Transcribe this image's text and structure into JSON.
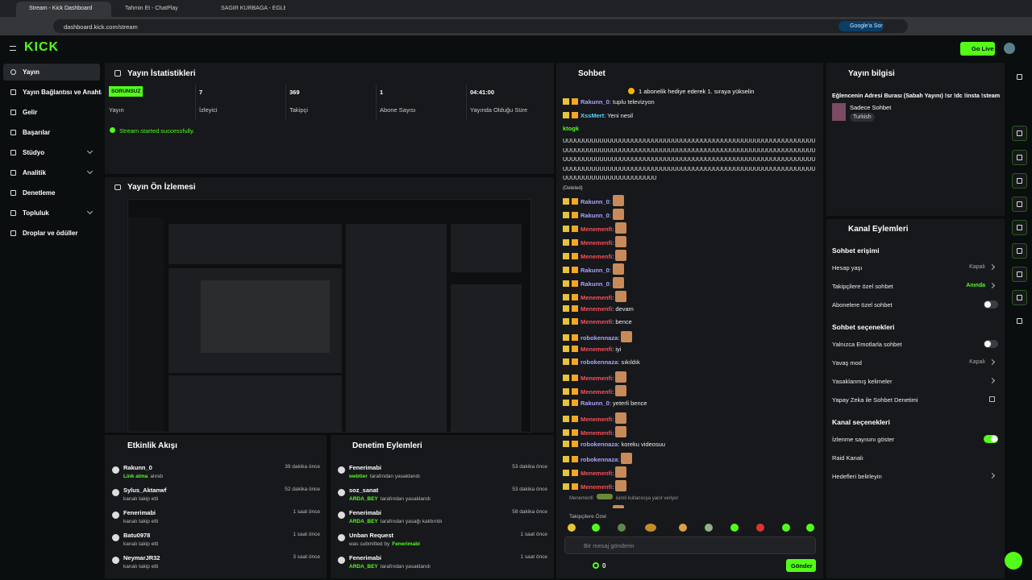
{
  "browser": {
    "tabs": [
      "Stream - Kick Dashboard",
      "Tahmin Et - ChatPlay",
      "SAĞIR KURBAĞA - EĞLENCELİ"
    ],
    "url": "dashboard.kick.com/stream",
    "ask": "Google'a Sor"
  },
  "header": {
    "logo": "KICK",
    "go_live": "Go Live"
  },
  "sidebar": [
    {
      "label": "Yayın",
      "active": true
    },
    {
      "label": "Yayın Bağlantısı ve Anahtarı"
    },
    {
      "label": "Gelir"
    },
    {
      "label": "Başarılar"
    },
    {
      "label": "Stüdyo",
      "expandable": true
    },
    {
      "label": "Analitik",
      "expandable": true
    },
    {
      "label": "Denetleme"
    },
    {
      "label": "Topluluk",
      "expandable": true
    },
    {
      "label": "Droplar ve ödüller"
    }
  ],
  "stats": {
    "title": "Yayın İstatistikleri",
    "items": [
      {
        "value": "SORUNSUZ",
        "label": "Yayın",
        "badge": true
      },
      {
        "value": "7",
        "label": "İzleyici"
      },
      {
        "value": "369",
        "label": "Takipçi"
      },
      {
        "value": "1",
        "label": "Abone Sayısı"
      },
      {
        "value": "04:41:00",
        "label": "Yayında Olduğu Süre"
      }
    ],
    "message": "Stream started successfully."
  },
  "preview": {
    "title": "Yayın Ön İzlemesi"
  },
  "activity": {
    "title": "Etkinlik Akışı",
    "items": [
      {
        "user": "Rakunn_0",
        "highlight": "Link atma",
        "detail": "alındı",
        "time": "39 dakika önce"
      },
      {
        "user": "Sylus_Aktanwf",
        "detail": "kanalı takip etti",
        "time": "52 dakika önce"
      },
      {
        "user": "Fenerimabi",
        "detail": "kanalı takip etti",
        "time": "1 saat önce"
      },
      {
        "user": "Batu0978",
        "detail": "kanalı takip etti",
        "time": "1 saat önce"
      },
      {
        "user": "NeymarJR32",
        "detail": "kanalı takip etti",
        "time": "3 saat önce"
      }
    ]
  },
  "moderation": {
    "title": "Denetim Eylemleri",
    "items": [
      {
        "user": "Fenerimabi",
        "actor": "webtier",
        "detail": "tarafından yasaklandı",
        "time": "53 dakika önce"
      },
      {
        "user": "soz_sanat",
        "actor": "ARDA_BEY",
        "detail": "tarafından yasaklandı",
        "time": "53 dakika önce"
      },
      {
        "user": "Fenerimabi",
        "actor": "ARDA_BEY",
        "detail": "tarafından yasağı kaldırıldı",
        "time": "58 dakika önce"
      },
      {
        "user": "Unban Request",
        "before": "was submitted by",
        "actor": "Fenerimabi",
        "time": "1 saat önce"
      },
      {
        "user": "Fenerimabi",
        "actor": "ARDA_BEY",
        "detail": "tarafından yasaklandı",
        "time": "1 saat önce"
      }
    ]
  },
  "chat": {
    "title": "Sohbet",
    "banner": "1 abonelik hediye ederek 1. sıraya yükselin",
    "messages": [
      {
        "user": "Rakunn_0",
        "color": "#a8a4ff",
        "text": "tuplu televizyon"
      },
      {
        "user": "XssMert",
        "color": "#5fd3ff",
        "text": "Yeni nesil"
      },
      {
        "user": "ktogk",
        "color": "#53fc18",
        "block": "UUUUUUUUUUUUUUUUUUUUUUUUUUUUUUUUUUUUUUUUUUUUUUUUUUUUUUUUUUUUUUUUUUUUUUUUUUUUUUUUUUUUUUUUUUUUUUUUUUUUUUUUUUUUUUUUUUUUUUUUUUUUUUUUUUUUUUUUUUUUUUUUUUUUUUUUUUUUUUUUUUUUUUUUUUUUUUUUUUUUUUUUUUUUUUUUUUUUUUUUUUUUUUUUUUUUUUUUUUUUUUUUUUUUUUUUUUUUUUUUUUUUUUUUUUUUUUUUUUUUUUUUUUUUUUU",
        "status": "(Deleted)"
      },
      {
        "user": "Rakunn_0",
        "color": "#a8a4ff"
      },
      {
        "user": "Rakunn_0",
        "color": "#a8a4ff"
      },
      {
        "user": "Menemenfi",
        "color": "#ff4d57"
      },
      {
        "user": "Menemenfi",
        "color": "#ff4d57"
      },
      {
        "user": "Menemenfi",
        "color": "#ff4d57"
      },
      {
        "user": "Rakunn_0",
        "color": "#a8a4ff"
      },
      {
        "user": "Rakunn_0",
        "color": "#a8a4ff"
      },
      {
        "user": "Menemenfi",
        "color": "#ff4d57"
      },
      {
        "user": "Menemenfi",
        "color": "#ff4d57",
        "text": "devam"
      },
      {
        "user": "Menemenfi",
        "color": "#ff4d57",
        "text": "bence"
      },
      {
        "user": "robokennaza",
        "color": "#a8a4ff"
      },
      {
        "user": "Menemenfi",
        "color": "#ff4d57",
        "text": "iyi"
      },
      {
        "user": "robokennaza",
        "color": "#a8a4ff",
        "text": "sıkıldık"
      },
      {
        "user": "Menemenfi",
        "color": "#ff4d57"
      },
      {
        "user": "Menemenfi",
        "color": "#ff4d57"
      },
      {
        "user": "Rakunn_0",
        "color": "#a8a4ff",
        "text": "yeterli bence"
      },
      {
        "user": "Menemenfi",
        "color": "#ff4d57"
      },
      {
        "user": "Menemenfi",
        "color": "#ff4d57"
      },
      {
        "user": "robokennaza",
        "color": "#a8a4ff",
        "text": "koreku videosuu"
      },
      {
        "user": "robokennaza",
        "color": "#a8a4ff"
      },
      {
        "user": "Menemenfi",
        "color": "#ff4d57"
      },
      {
        "user": "Menemenfi",
        "color": "#ff4d57"
      },
      {
        "reply_to": "Menemenfi",
        "text": "isimli kullanıcıya yanıt veriyor"
      },
      {
        "user": "Rakunn_0",
        "color": "#a8a4ff"
      }
    ],
    "footer_label": "Takipçilere Özel",
    "placeholder": "Bir mesaj gönderin",
    "count": "0",
    "send": "Gönder"
  },
  "stream_info": {
    "title": "Yayın bilgisi",
    "stream_title": "Eğlencenin Adresi Burası (Sabah Yayını) !sr !dc !insta !steam",
    "category": "Sadece Sohbet",
    "tag": "Turkish"
  },
  "channel_actions": {
    "title": "Kanal Eylemleri",
    "sections": [
      {
        "heading": "Sohbet erişimi",
        "rows": [
          {
            "label": "Hesap yaşı",
            "value": "Kapalı",
            "control": "chevron"
          },
          {
            "label": "Takipçilere özel sohbet",
            "value": "Anında",
            "value_color": "#53fc18",
            "control": "chevron"
          },
          {
            "label": "Abonelere özel sohbet",
            "control": "toggle-off"
          }
        ]
      },
      {
        "heading": "Sohbet seçenekleri",
        "rows": [
          {
            "label": "Yalnızca Emotlarla sohbet",
            "control": "toggle-off"
          },
          {
            "label": "Yavaş mod",
            "value": "Kapalı",
            "control": "chevron"
          },
          {
            "label": "Yasaklanmış kelimeler",
            "control": "chevron"
          },
          {
            "label": "Yapay Zeka ile Sohbet Denetimi",
            "control": "external"
          }
        ]
      },
      {
        "heading": "Kanal seçenekleri",
        "rows": [
          {
            "label": "İzlenme sayısını göster",
            "control": "toggle-on"
          },
          {
            "label": "Raid Kanalı"
          },
          {
            "label": "Hedefleri belirleyin",
            "control": "chevron"
          }
        ]
      }
    ]
  }
}
